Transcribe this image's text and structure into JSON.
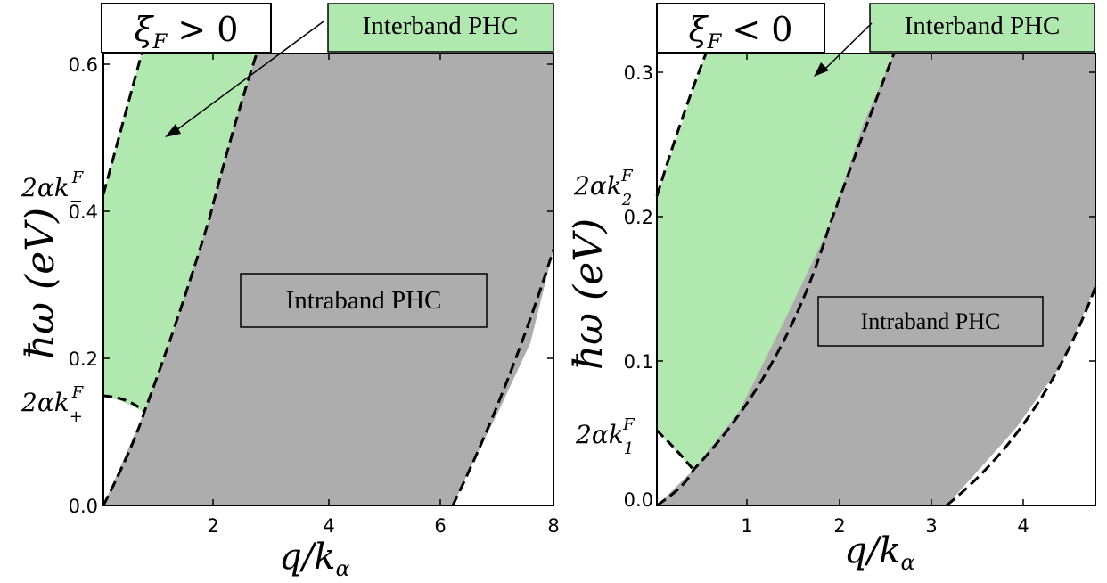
{
  "chart_data": [
    {
      "type": "area",
      "panel_label": "ξ_F > 0",
      "xlabel": "q/k_α",
      "ylabel": "ħω (eV)",
      "xlim": [
        0,
        8
      ],
      "ylim": [
        0,
        0.62
      ],
      "xticks": [
        2,
        4,
        6,
        8
      ],
      "xtick_labels": [
        "2",
        "4",
        "6",
        "8"
      ],
      "yticks": [
        0.0,
        0.2,
        0.4,
        0.6
      ],
      "ytick_labels": [
        "0.0",
        "0.2",
        "0.4",
        "0.6"
      ],
      "marked_levels": [
        {
          "label": "2αk_-^F",
          "value": 0.42
        },
        {
          "label": "2αk_+^F",
          "value": 0.145
        }
      ],
      "regions": [
        {
          "name": "Interband PHC",
          "color": "#b0e8b0"
        },
        {
          "name": "Intraband PHC",
          "color": "#adadad"
        }
      ],
      "boundaries": [
        {
          "name": "interband-left",
          "x": [
            0.0,
            0.2,
            0.4,
            0.6,
            0.67
          ],
          "y": [
            0.42,
            0.5,
            0.56,
            0.605,
            0.62
          ]
        },
        {
          "name": "intra-upper",
          "x": [
            0.0,
            0.5,
            1.0,
            1.5,
            2.0,
            2.5,
            2.7
          ],
          "y": [
            0.0,
            0.078,
            0.16,
            0.255,
            0.39,
            0.545,
            0.62
          ]
        },
        {
          "name": "intra-lower",
          "x": [
            6.25,
            6.5,
            7.0,
            7.5,
            8.0
          ],
          "y": [
            0.0,
            0.045,
            0.13,
            0.22,
            0.34
          ]
        },
        {
          "name": "interband-lower-arc",
          "x": [
            0.0,
            0.3,
            0.6,
            0.75
          ],
          "y": [
            0.145,
            0.14,
            0.125,
            0.115
          ]
        }
      ],
      "annotations": [
        "Interband PHC",
        "Intraband PHC"
      ]
    },
    {
      "type": "area",
      "panel_label": "ξ_F < 0",
      "xlabel": "q/k_α",
      "ylabel": "ħω (eV)",
      "xlim": [
        0,
        4.8
      ],
      "ylim": [
        0,
        0.31
      ],
      "xticks": [
        1,
        2,
        3,
        4
      ],
      "xtick_labels": [
        "1",
        "2",
        "3",
        "4"
      ],
      "yticks": [
        0.0,
        0.1,
        0.2,
        0.3
      ],
      "ytick_labels": [
        "0.0",
        "0.1",
        "0.2",
        "0.3"
      ],
      "marked_levels": [
        {
          "label": "2αk_2^F",
          "value": 0.21
        },
        {
          "label": "2αk_1^F",
          "value": 0.052
        }
      ],
      "regions": [
        {
          "name": "Interband PHC",
          "color": "#b0e8b0"
        },
        {
          "name": "Intraband PHC",
          "color": "#adadad"
        }
      ],
      "boundaries": [
        {
          "name": "interband-left",
          "x": [
            0.0,
            0.2,
            0.4,
            0.55
          ],
          "y": [
            0.21,
            0.255,
            0.295,
            0.31
          ]
        },
        {
          "name": "intra-upper",
          "x": [
            0.0,
            0.2,
            0.4,
            0.8,
            1.2,
            1.6,
            2.0,
            2.4,
            2.6
          ],
          "y": [
            0.0,
            0.011,
            0.028,
            0.06,
            0.1,
            0.15,
            0.2,
            0.265,
            0.31
          ]
        },
        {
          "name": "intra-lower",
          "x": [
            3.2,
            3.5,
            3.8,
            4.1,
            4.4,
            4.8
          ],
          "y": [
            0.0,
            0.02,
            0.045,
            0.07,
            0.1,
            0.15
          ]
        },
        {
          "name": "interband-lower-arc",
          "x": [
            0.0,
            0.15,
            0.3,
            0.4
          ],
          "y": [
            0.052,
            0.04,
            0.03,
            0.025
          ]
        }
      ],
      "annotations": [
        "Interband PHC",
        "Intraband PHC"
      ]
    }
  ],
  "colors": {
    "interband": "#b0e8b0",
    "intraband": "#adadad",
    "line": "#000000"
  }
}
